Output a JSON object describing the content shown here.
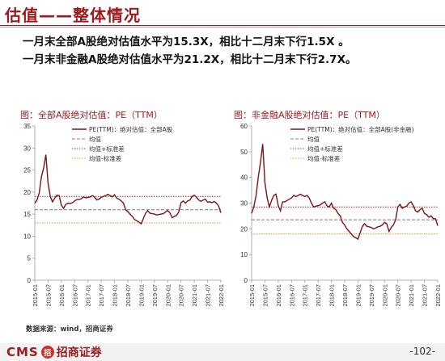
{
  "page": {
    "title": "估值——整体情况",
    "bullets": [
      "一月末全部A股绝对估值水平为15.3X，相比十二月末下行1.5X 。",
      "一月末非金融A股绝对估值水平为21.2X，相比十二月末下行2.7X。"
    ],
    "footnote": "数据来源：wind，招商证券",
    "logo": {
      "latin": "CMS",
      "mark": "招",
      "cn": "招商证券"
    },
    "page_number": "-102-"
  },
  "colors": {
    "brand": "#9a1b1f",
    "series_main": "#7b1418",
    "mean": "#888888",
    "plus_std": "#b03a3a",
    "minus_std": "#d9a23a"
  },
  "chart_data": [
    {
      "type": "line",
      "title": "图：全部A股绝对估值：PE（TTM）",
      "legend": [
        "PE(TTM)：绝对估值：全部A股",
        "均值",
        "均值+标准差",
        "均值-标准差"
      ],
      "legend_position": "top-right",
      "grid": false,
      "ylim": [
        0,
        35
      ],
      "yticks": [
        0,
        5,
        10,
        15,
        20,
        25,
        30,
        35
      ],
      "xticks": [
        "2015-01",
        "2015-07",
        "2016-01",
        "2016-07",
        "2017-01",
        "2017-07",
        "2018-01",
        "2018-07",
        "2019-01",
        "2019-07",
        "2020-01",
        "2020-07",
        "2021-01",
        "2021-07",
        "2022-01"
      ],
      "x": [
        "2015-01",
        "2015-02",
        "2015-03",
        "2015-04",
        "2015-05",
        "2015-06",
        "2015-07",
        "2015-08",
        "2015-09",
        "2015-10",
        "2015-11",
        "2015-12",
        "2016-01",
        "2016-02",
        "2016-03",
        "2016-04",
        "2016-05",
        "2016-06",
        "2016-07",
        "2016-08",
        "2016-09",
        "2016-10",
        "2016-11",
        "2016-12",
        "2017-01",
        "2017-02",
        "2017-03",
        "2017-04",
        "2017-05",
        "2017-06",
        "2017-07",
        "2017-08",
        "2017-09",
        "2017-10",
        "2017-11",
        "2017-12",
        "2018-01",
        "2018-02",
        "2018-03",
        "2018-04",
        "2018-05",
        "2018-06",
        "2018-07",
        "2018-08",
        "2018-09",
        "2018-10",
        "2018-11",
        "2018-12",
        "2019-01",
        "2019-02",
        "2019-03",
        "2019-04",
        "2019-05",
        "2019-06",
        "2019-07",
        "2019-08",
        "2019-09",
        "2019-10",
        "2019-11",
        "2019-12",
        "2020-01",
        "2020-02",
        "2020-03",
        "2020-04",
        "2020-05",
        "2020-06",
        "2020-07",
        "2020-08",
        "2020-09",
        "2020-10",
        "2020-11",
        "2020-12",
        "2021-01",
        "2021-02",
        "2021-03",
        "2021-04",
        "2021-05",
        "2021-06",
        "2021-07",
        "2021-08",
        "2021-09",
        "2021-10",
        "2021-11",
        "2021-12",
        "2022-01"
      ],
      "series": [
        {
          "name": "PE(TTM)：绝对估值：全部A股",
          "values": [
            17.5,
            18.2,
            19.8,
            23.5,
            25.5,
            28.5,
            22.0,
            19.0,
            17.8,
            18.6,
            19.3,
            19.2,
            17.0,
            16.3,
            17.2,
            17.5,
            17.4,
            17.6,
            18.0,
            18.3,
            18.3,
            18.5,
            18.9,
            18.7,
            18.8,
            18.9,
            19.2,
            18.9,
            18.2,
            18.4,
            18.8,
            19.0,
            19.2,
            19.5,
            19.2,
            18.9,
            19.4,
            18.6,
            18.4,
            18.0,
            17.5,
            16.0,
            15.6,
            15.0,
            14.5,
            13.8,
            13.5,
            13.2,
            12.8,
            14.0,
            15.2,
            15.8,
            15.2,
            15.1,
            15.0,
            14.8,
            14.9,
            15.0,
            15.1,
            15.5,
            15.8,
            15.3,
            14.2,
            14.5,
            14.7,
            15.5,
            17.6,
            18.0,
            17.5,
            18.0,
            18.2,
            19.0,
            19.3,
            18.8,
            18.2,
            17.9,
            18.2,
            18.4,
            17.7,
            17.8,
            17.6,
            17.9,
            17.5,
            16.8,
            15.3
          ]
        }
      ],
      "reference_lines": {
        "mean": 16.0,
        "mean_plus_std": 19.0,
        "mean_minus_std": 13.0
      }
    },
    {
      "type": "line",
      "title": "图：非金融A股绝对估值：PE（TTM）",
      "legend": [
        "PE(TTM)：绝对估值：全部A股(非金融)",
        "均值",
        "均值+标准差",
        "均值-标准差"
      ],
      "legend_position": "top-right",
      "grid": false,
      "ylim": [
        0,
        60
      ],
      "yticks": [
        0,
        10,
        20,
        30,
        40,
        50,
        60
      ],
      "xticks": [
        "2015-01",
        "2015-07",
        "2016-01",
        "2016-07",
        "2017-01",
        "2017-07",
        "2018-01",
        "2018-07",
        "2019-01",
        "2019-07",
        "2020-01",
        "2020-07",
        "2021-01",
        "2021-07",
        "2022-01"
      ],
      "x": [
        "2015-01",
        "2015-02",
        "2015-03",
        "2015-04",
        "2015-05",
        "2015-06",
        "2015-07",
        "2015-08",
        "2015-09",
        "2015-10",
        "2015-11",
        "2015-12",
        "2016-01",
        "2016-02",
        "2016-03",
        "2016-04",
        "2016-05",
        "2016-06",
        "2016-07",
        "2016-08",
        "2016-09",
        "2016-10",
        "2016-11",
        "2016-12",
        "2017-01",
        "2017-02",
        "2017-03",
        "2017-04",
        "2017-05",
        "2017-06",
        "2017-07",
        "2017-08",
        "2017-09",
        "2017-10",
        "2017-11",
        "2017-12",
        "2018-01",
        "2018-02",
        "2018-03",
        "2018-04",
        "2018-05",
        "2018-06",
        "2018-07",
        "2018-08",
        "2018-09",
        "2018-10",
        "2018-11",
        "2018-12",
        "2019-01",
        "2019-02",
        "2019-03",
        "2019-04",
        "2019-05",
        "2019-06",
        "2019-07",
        "2019-08",
        "2019-09",
        "2019-10",
        "2019-11",
        "2019-12",
        "2020-01",
        "2020-02",
        "2020-03",
        "2020-04",
        "2020-05",
        "2020-06",
        "2020-07",
        "2020-08",
        "2020-09",
        "2020-10",
        "2020-11",
        "2020-12",
        "2021-01",
        "2021-02",
        "2021-03",
        "2021-04",
        "2021-05",
        "2021-06",
        "2021-07",
        "2021-08",
        "2021-09",
        "2021-10",
        "2021-11",
        "2021-12",
        "2022-01"
      ],
      "series": [
        {
          "name": "PE(TTM)：绝对估值：全部A股(非金融)",
          "values": [
            26.0,
            28.5,
            33.0,
            40.0,
            46.0,
            53.0,
            38.0,
            32.0,
            28.5,
            31.0,
            33.0,
            33.5,
            29.0,
            27.0,
            30.5,
            30.5,
            31.0,
            31.5,
            32.0,
            33.0,
            32.5,
            33.0,
            33.5,
            33.0,
            32.5,
            33.0,
            32.0,
            30.0,
            28.5,
            28.8,
            29.0,
            29.3,
            30.0,
            30.5,
            29.0,
            28.5,
            30.0,
            28.0,
            27.5,
            26.0,
            25.0,
            22.5,
            21.5,
            20.0,
            19.0,
            18.0,
            17.0,
            16.5,
            16.0,
            18.5,
            21.0,
            22.0,
            21.0,
            20.8,
            20.5,
            20.0,
            20.3,
            20.8,
            21.0,
            21.5,
            22.5,
            22.0,
            19.0,
            20.5,
            21.5,
            23.5,
            28.5,
            29.5,
            28.0,
            28.5,
            28.8,
            30.0,
            30.5,
            29.0,
            27.0,
            26.5,
            27.5,
            28.0,
            26.0,
            25.5,
            24.5,
            25.0,
            24.0,
            23.9,
            21.2
          ]
        }
      ],
      "reference_lines": {
        "mean": 23.5,
        "mean_plus_std": 28.5,
        "mean_minus_std": 18.0
      }
    }
  ]
}
